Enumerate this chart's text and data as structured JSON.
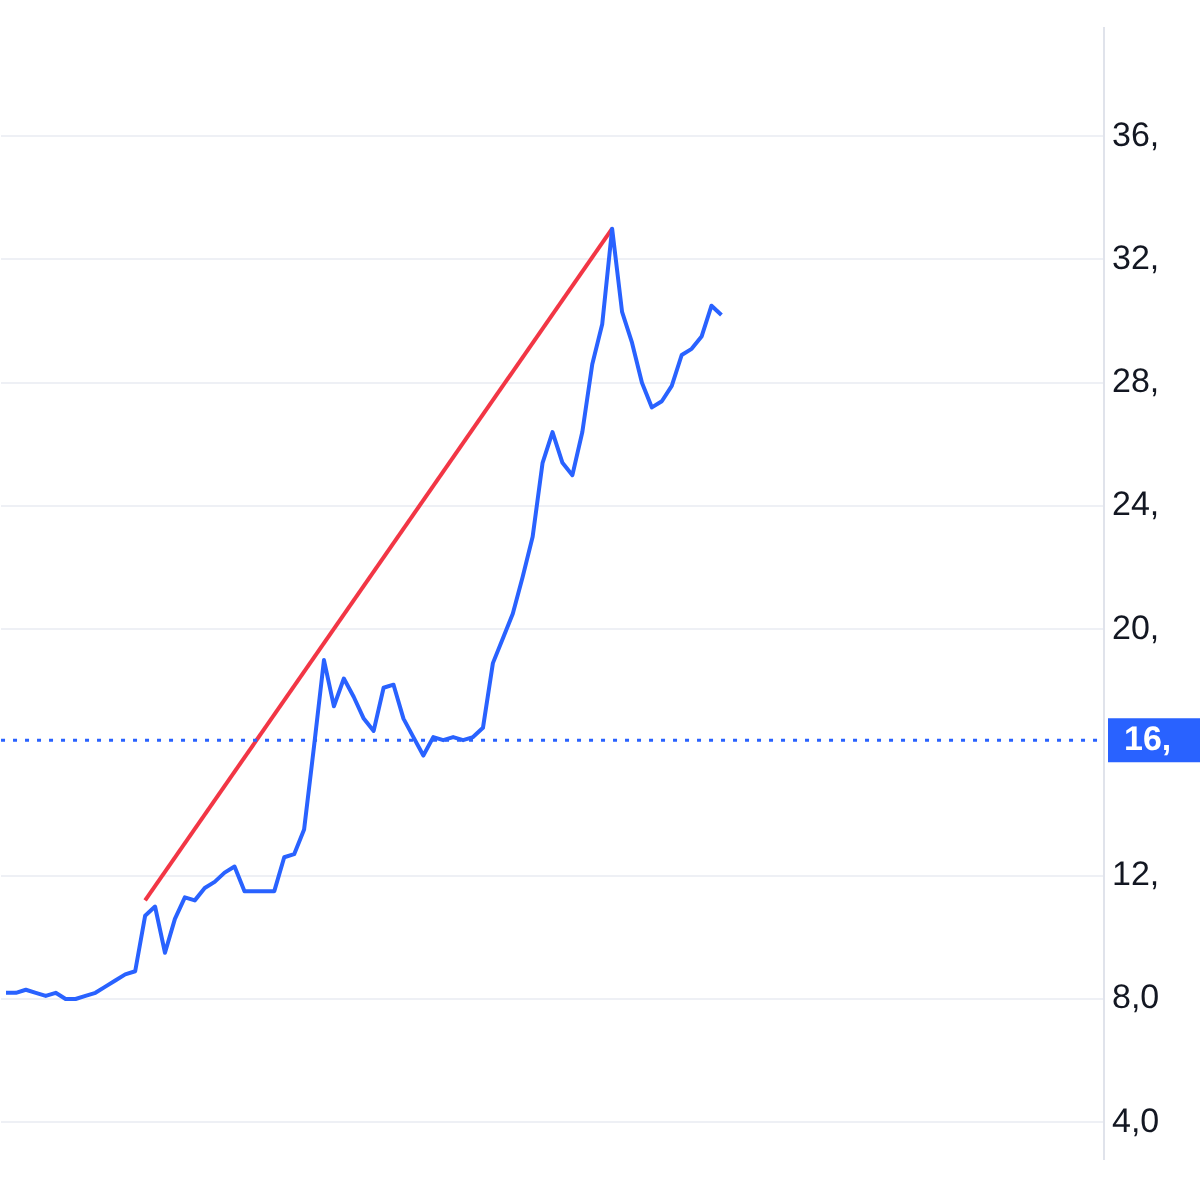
{
  "chart_data": {
    "type": "line",
    "categories": [
      null,
      null,
      null,
      null,
      null,
      null,
      null,
      null,
      null,
      null,
      null,
      null,
      null,
      null,
      null,
      null,
      null,
      null,
      null,
      null,
      null,
      null,
      null,
      null,
      null,
      null,
      null,
      null,
      null,
      null,
      null,
      null,
      null,
      null,
      null,
      null,
      null,
      null,
      null,
      null,
      null,
      null,
      null,
      null,
      null,
      null,
      null,
      null,
      null,
      null,
      null,
      null,
      null,
      null,
      null,
      null,
      null,
      null,
      null,
      null,
      null,
      null,
      null,
      null,
      null,
      null,
      null,
      null,
      null,
      null,
      null,
      null,
      null,
      null,
      null,
      null,
      null,
      null,
      null,
      null,
      null,
      null,
      null,
      null,
      null,
      null,
      null,
      null,
      null,
      null,
      null,
      null,
      null,
      null,
      null,
      null,
      null,
      null,
      null,
      null,
      null,
      null,
      null,
      null,
      null,
      null,
      null,
      null,
      null,
      null,
      null
    ],
    "series": [
      {
        "color": "#2962ff",
        "values": [
          8.2,
          8.2,
          8.3,
          8.2,
          8.1,
          8.2,
          8.0,
          8.0,
          8.1,
          8.2,
          8.4,
          8.6,
          8.8,
          8.9,
          10.7,
          11.0,
          9.5,
          10.6,
          11.3,
          11.2,
          11.6,
          11.8,
          12.1,
          12.3,
          11.5,
          11.5,
          11.5,
          11.5,
          12.6,
          12.7,
          13.5,
          16.2,
          19.0,
          17.5,
          18.4,
          17.8,
          17.1,
          16.7,
          18.1,
          18.2,
          17.1,
          16.5,
          15.9,
          16.5,
          16.4,
          16.5,
          16.4,
          16.5,
          16.8,
          18.9,
          19.7,
          20.5,
          21.7,
          23.0,
          25.4,
          26.4,
          25.4,
          25.0,
          26.4,
          28.6,
          29.9,
          33.0,
          30.3,
          29.3,
          28.0,
          27.2,
          27.4,
          27.9,
          28.9,
          29.1,
          29.5,
          30.5,
          30.2,
          null,
          null,
          null,
          null,
          null,
          null,
          null,
          null,
          null,
          null,
          null,
          null,
          null,
          null,
          null,
          null,
          null,
          null,
          null,
          null,
          null,
          null,
          null,
          null,
          null,
          null,
          null,
          null,
          null,
          null,
          null,
          null,
          null,
          null,
          null,
          null,
          null,
          null
        ]
      },
      {
        "type": "line",
        "color": "#f23645",
        "values": [
          null,
          null,
          null,
          null,
          null,
          null,
          null,
          null,
          null,
          null,
          null,
          null,
          null,
          null,
          11.2,
          null,
          null,
          null,
          null,
          null,
          null,
          null,
          null,
          null,
          null,
          null,
          null,
          null,
          null,
          null,
          null,
          null,
          null,
          null,
          null,
          null,
          null,
          null,
          null,
          null,
          null,
          null,
          null,
          null,
          null,
          null,
          null,
          null,
          null,
          null,
          null,
          null,
          null,
          null,
          null,
          null,
          null,
          null,
          null,
          null,
          null,
          33.0,
          null,
          null,
          null,
          null,
          null,
          null,
          null,
          null,
          null,
          null,
          null,
          null,
          null,
          null,
          null,
          null,
          null,
          null,
          null,
          null,
          null,
          null,
          null,
          null,
          null,
          null,
          null,
          null,
          null,
          null,
          null,
          null,
          null,
          null,
          null,
          null,
          null,
          null,
          null,
          null,
          null,
          null,
          null,
          null,
          null,
          null,
          null,
          null,
          null
        ]
      }
    ],
    "ylim": [
      2.8,
      39.5
    ],
    "yticks": [
      {
        "value": 4,
        "label": "4,0"
      },
      {
        "value": 8,
        "label": "8,0"
      },
      {
        "value": 12,
        "label": "12,"
      },
      {
        "value": 20,
        "label": "20,"
      },
      {
        "value": 24,
        "label": "24,"
      },
      {
        "value": 28,
        "label": "28,"
      },
      {
        "value": 32,
        "label": "32,"
      },
      {
        "value": 36,
        "label": "36,"
      }
    ],
    "ref_lines": [
      {
        "axis": "y",
        "value": 16.4,
        "label": "16,",
        "color": "#2962ff",
        "line_style": "dotted"
      }
    ],
    "grid": "y",
    "legend": false,
    "marker": "none",
    "line_style": "solid"
  }
}
